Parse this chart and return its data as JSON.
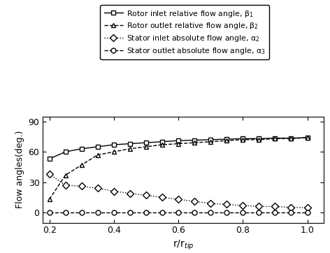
{
  "x": [
    0.2,
    0.25,
    0.3,
    0.35,
    0.4,
    0.45,
    0.5,
    0.55,
    0.6,
    0.65,
    0.7,
    0.75,
    0.8,
    0.85,
    0.9,
    0.95,
    1.0
  ],
  "beta1": [
    53,
    60,
    63,
    65,
    67,
    68,
    69,
    70,
    71,
    71.5,
    72,
    72.5,
    73,
    73,
    73.5,
    73.5,
    74
  ],
  "beta2": [
    13,
    37,
    47,
    57,
    60,
    63,
    65,
    67,
    68,
    69,
    70,
    71,
    72,
    72,
    73,
    73,
    74
  ],
  "alpha2": [
    38,
    27,
    26,
    24,
    21,
    19,
    17,
    15,
    13,
    11,
    9,
    8,
    7,
    6,
    6,
    5,
    5
  ],
  "alpha3": [
    0,
    0,
    0,
    0,
    0,
    0,
    0,
    0,
    0,
    0,
    0,
    0,
    0,
    0,
    0,
    0,
    0
  ],
  "xlabel": "r/r$_{tip}$",
  "ylabel": "Flow angles(deg.)",
  "xlim": [
    0.18,
    1.05
  ],
  "ylim": [
    -10,
    95
  ],
  "yticks": [
    0,
    30,
    60,
    90
  ],
  "xticks": [
    0.2,
    0.4,
    0.6,
    0.8,
    1.0
  ],
  "legend_labels": [
    "Rotor inlet relative flow angle, β$_1$",
    "Rotor outlet relative flow angle, β$_2$",
    "Stator inlet absolute flow angle, α$_2$",
    "Stator outlet absolute flow angle, α$_3$"
  ],
  "line_styles": [
    "-",
    "--",
    ":",
    "--"
  ],
  "markers": [
    "s",
    "^",
    "D",
    "o"
  ],
  "marker_size": 5,
  "line_color": "#000000",
  "background_color": "#ffffff",
  "figsize": [
    4.72,
    3.62
  ],
  "dpi": 100
}
